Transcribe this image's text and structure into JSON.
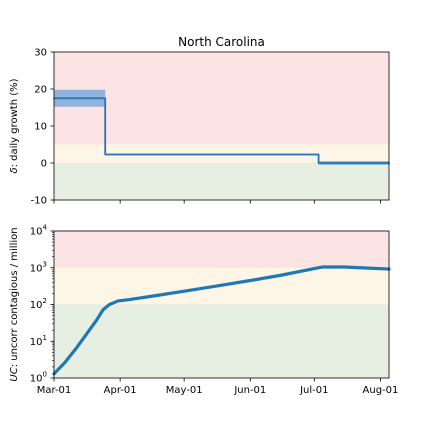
{
  "chart_data": [
    {
      "type": "line",
      "title": "North Carolina",
      "ylabel_symbol": "δ",
      "ylabel_text": ": daily growth (%)",
      "ylim": [
        -10,
        30
      ],
      "yticks": [
        -10,
        0,
        10,
        20,
        30
      ],
      "xlim": [
        "2020-03-01",
        "2020-08-05"
      ],
      "bands": [
        {
          "from": -10,
          "to": 0,
          "color": "#e6efe2"
        },
        {
          "from": 0,
          "to": 5,
          "color": "#fdf5e5"
        },
        {
          "from": 5,
          "to": 30,
          "color": "#fde4e4"
        }
      ],
      "series": [
        {
          "color": "#1f77b4",
          "band_color": "#7fa9db",
          "x": [
            "2020-03-01",
            "2020-03-25",
            "2020-03-25",
            "2020-07-03",
            "2020-07-03",
            "2020-08-05"
          ],
          "y": [
            17.5,
            17.5,
            2.3,
            2.3,
            0.0,
            0.0
          ],
          "lower": [
            15.2,
            15.2,
            2.1,
            2.1,
            -0.5,
            -0.5
          ],
          "upper": [
            19.8,
            19.8,
            2.5,
            2.5,
            0.5,
            0.5
          ]
        }
      ]
    },
    {
      "type": "line",
      "ylabel_symbol": "UC",
      "ylabel_text": ": uncorr contagious / million",
      "yscale": "log",
      "ylim": [
        1,
        10000
      ],
      "yticks": [
        {
          "value": 1,
          "base": "10",
          "exp": "0"
        },
        {
          "value": 10,
          "base": "10",
          "exp": "1"
        },
        {
          "value": 100,
          "base": "10",
          "exp": "2"
        },
        {
          "value": 1000,
          "base": "10",
          "exp": "3"
        },
        {
          "value": 10000,
          "base": "10",
          "exp": "4"
        }
      ],
      "xlim": [
        "2020-03-01",
        "2020-08-05"
      ],
      "xticks": [
        {
          "date": "2020-03-01",
          "label": "Mar-01"
        },
        {
          "date": "2020-04-01",
          "label": "Apr-01"
        },
        {
          "date": "2020-05-01",
          "label": "May-01"
        },
        {
          "date": "2020-06-01",
          "label": "Jun-01"
        },
        {
          "date": "2020-07-01",
          "label": "Jul-01"
        },
        {
          "date": "2020-08-01",
          "label": "Aug-01"
        }
      ],
      "bands": [
        {
          "from": 1,
          "to": 100,
          "color": "#e6efe2"
        },
        {
          "from": 100,
          "to": 1000,
          "color": "#fdf5e5"
        },
        {
          "from": 1000,
          "to": 10000,
          "color": "#fde4e4"
        }
      ],
      "series": [
        {
          "color": "#1f77b4",
          "x": [
            "2020-03-01",
            "2020-03-06",
            "2020-03-11",
            "2020-03-16",
            "2020-03-21",
            "2020-03-24",
            "2020-03-27",
            "2020-03-31",
            "2020-04-05",
            "2020-04-15",
            "2020-05-01",
            "2020-05-15",
            "2020-06-01",
            "2020-06-15",
            "2020-07-01",
            "2020-07-05",
            "2020-07-15",
            "2020-08-05"
          ],
          "y": [
            1.3,
            2.6,
            6,
            15,
            38,
            72,
            100,
            125,
            135,
            165,
            230,
            310,
            450,
            620,
            950,
            1050,
            1050,
            920
          ]
        }
      ]
    }
  ]
}
